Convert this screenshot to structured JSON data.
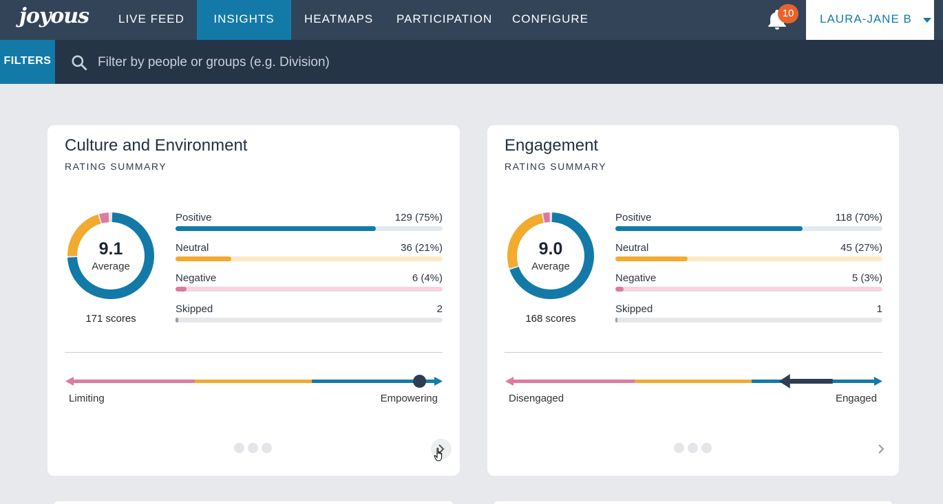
{
  "nav": {
    "logo": "joyous",
    "items": [
      "LIVE FEED",
      "INSIGHTS",
      "HEATMAPS",
      "PARTICIPATION",
      "CONFIGURE"
    ],
    "active": "INSIGHTS",
    "notifications": "10",
    "user": "LAURA-JANE B"
  },
  "filterbar": {
    "button": "FILTERS",
    "placeholder": "Filter by people or groups (e.g. Division)"
  },
  "colors": {
    "positive": "#137aa8",
    "neutral": "#f2ab2f",
    "negative": "#de7a9d",
    "skipped": "#9aa0a8",
    "marker": "#2d3e54"
  },
  "cards": [
    {
      "title": "Culture and Environment",
      "subtitle": "RATING SUMMARY",
      "average": "9.1",
      "average_label": "Average",
      "scores": "171 scores",
      "stats": [
        {
          "label": "Positive",
          "value": "129 (75%)",
          "pct": 75
        },
        {
          "label": "Neutral",
          "value": "36 (21%)",
          "pct": 21
        },
        {
          "label": "Negative",
          "value": "6 (4%)",
          "pct": 4
        },
        {
          "label": "Skipped",
          "value": "2",
          "pct": 1
        }
      ],
      "scale_left": "Limiting",
      "scale_right": "Empowering",
      "marker": "dot",
      "marker_position": 0.95,
      "page": 1
    },
    {
      "title": "Engagement",
      "subtitle": "RATING SUMMARY",
      "average": "9.0",
      "average_label": "Average",
      "scores": "168 scores",
      "stats": [
        {
          "label": "Positive",
          "value": "118 (70%)",
          "pct": 70
        },
        {
          "label": "Neutral",
          "value": "45 (27%)",
          "pct": 27
        },
        {
          "label": "Negative",
          "value": "5 (3%)",
          "pct": 3
        },
        {
          "label": "Skipped",
          "value": "1",
          "pct": 0.5
        }
      ],
      "scale_left": "Disengaged",
      "scale_right": "Engaged",
      "marker": "arrow",
      "marker_position": 0.89,
      "page": 1
    }
  ]
}
